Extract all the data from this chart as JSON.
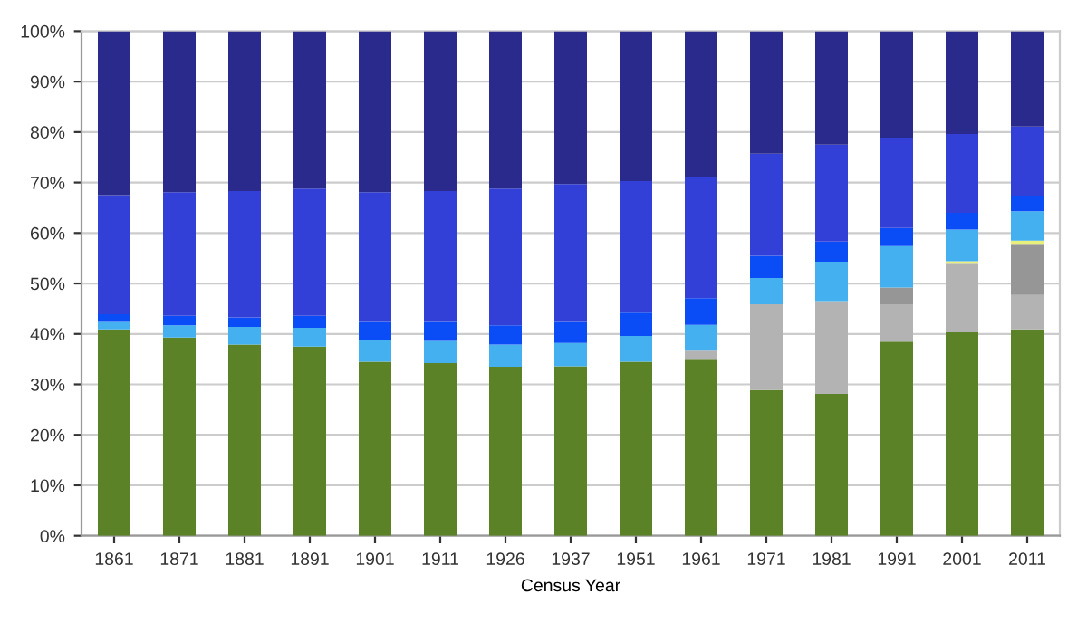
{
  "chart_data": {
    "type": "bar",
    "stacked": true,
    "xlabel": "Census Year",
    "categories": [
      "1861",
      "1871",
      "1881",
      "1891",
      "1901",
      "1911",
      "1926",
      "1937",
      "1951",
      "1961",
      "1971",
      "1981",
      "1991",
      "2001",
      "2011"
    ],
    "series": [
      {
        "color": "#5b8226",
        "values": [
          40.9,
          39.3,
          37.9,
          37.5,
          34.5,
          34.2,
          33.5,
          33.6,
          34.5,
          34.9,
          28.9,
          28.1,
          38.5,
          40.3,
          40.9
        ]
      },
      {
        "color": "#b3b3b3",
        "values": [
          0,
          0,
          0,
          0,
          0,
          0,
          0,
          0,
          0,
          1.8,
          17.0,
          18.4,
          7.4,
          13.8,
          6.8
        ]
      },
      {
        "color": "#969696",
        "values": [
          0,
          0,
          0,
          0,
          0,
          0,
          0,
          0,
          0,
          0,
          0,
          0,
          3.3,
          0,
          10.0
        ]
      },
      {
        "color": "#e6f07a",
        "values": [
          0,
          0,
          0,
          0,
          0,
          0,
          0,
          0,
          0,
          0,
          0,
          0,
          0,
          0.3,
          0.8
        ]
      },
      {
        "color": "#45b0f0",
        "values": [
          1.5,
          2.4,
          3.5,
          3.7,
          4.3,
          4.4,
          4.4,
          4.6,
          5.1,
          5.1,
          5.2,
          7.8,
          8.2,
          6.3,
          5.8
        ]
      },
      {
        "color": "#0a4cf5",
        "values": [
          1.5,
          1.9,
          1.9,
          2.4,
          3.6,
          3.8,
          3.8,
          4.2,
          4.6,
          5.3,
          4.4,
          4.0,
          3.6,
          3.3,
          3.1
        ]
      },
      {
        "color": "#3340d8",
        "values": [
          23.6,
          24.5,
          25.0,
          25.2,
          25.7,
          25.9,
          27.1,
          27.3,
          26.1,
          24.1,
          20.2,
          19.2,
          17.9,
          15.6,
          13.7
        ]
      },
      {
        "color": "#2a2a8c",
        "values": [
          32.5,
          31.9,
          31.7,
          31.2,
          31.9,
          31.7,
          31.2,
          30.3,
          29.7,
          28.8,
          24.3,
          22.5,
          21.1,
          20.4,
          18.9
        ]
      }
    ],
    "ylim": [
      0,
      100
    ],
    "yticks": [
      {
        "value": 0,
        "label": "0%"
      },
      {
        "value": 10,
        "label": "10%"
      },
      {
        "value": 20,
        "label": "20%"
      },
      {
        "value": 30,
        "label": "30%"
      },
      {
        "value": 40,
        "label": "40%"
      },
      {
        "value": 50,
        "label": "50%"
      },
      {
        "value": 60,
        "label": "60%"
      },
      {
        "value": 70,
        "label": "70%"
      },
      {
        "value": 80,
        "label": "80%"
      },
      {
        "value": 90,
        "label": "90%"
      },
      {
        "value": 100,
        "label": "100%"
      }
    ],
    "grid": "y"
  }
}
